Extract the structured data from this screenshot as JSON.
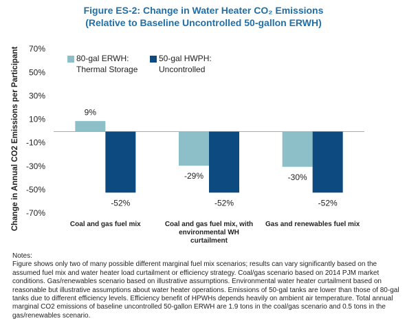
{
  "chart_data": {
    "type": "bar",
    "title": "Figure ES-2: Change in Water Heater CO₂ Emissions",
    "subtitle": "(Relative to Baseline Uncontrolled 50-gallon ERWH)",
    "y_label": "Change in Annual CO2 Emissions per Participant",
    "categories": [
      "Coal and gas fuel mix",
      "Coal and gas fuel mix, with environmental WH curtailment",
      "Gas and renewables fuel mix"
    ],
    "series": [
      {
        "name": "80-gal ERWH: Thermal Storage",
        "color": "#8dbfc9",
        "values": [
          9,
          -29,
          -30
        ],
        "value_labels": [
          "9%",
          "-29%",
          "-30%"
        ]
      },
      {
        "name": "50-gal HWPH: Uncontrolled",
        "color": "#0d4a7f",
        "values": [
          -52,
          -52,
          -52
        ],
        "value_labels": [
          "-52%",
          "-52%",
          "-52%"
        ]
      }
    ],
    "ylim": [
      -70,
      70
    ],
    "yticks": [
      {
        "value": -70,
        "label": "-70%"
      },
      {
        "value": -50,
        "label": "-50%"
      },
      {
        "value": -30,
        "label": "-30%"
      },
      {
        "value": -10,
        "label": "-10%"
      },
      {
        "value": 10,
        "label": "10%"
      },
      {
        "value": 30,
        "label": "30%"
      },
      {
        "value": 50,
        "label": "50%"
      },
      {
        "value": 70,
        "label": "70%"
      }
    ],
    "grid": false,
    "legend": "top-left"
  },
  "notes": {
    "heading": "Notes:",
    "text": "Figure shows only two of many possible different marginal fuel mix scenarios; results can vary significantly based on the assumed fuel mix and water heater load curtailment or efficiency strategy.  Coal/gas scenario based on 2014 PJM market conditions.  Gas/renewables scenario based on illustrative assumptions.  Environmental water heater curtailment based on reasonable but illustrative assumptions about water heater operations.  Emissions of 50-gal tanks are lower than those of 80-gal tanks due to different efficiency levels.  Efficiency benefit of HPWHs depends heavily on ambient air temperature.  Total annual marginal CO2 emissions of baseline uncontrolled 50-gallon ERWH are 1.9 tons in the coal/gas scenario and 0.5 tons in the gas/renewables scenario."
  }
}
